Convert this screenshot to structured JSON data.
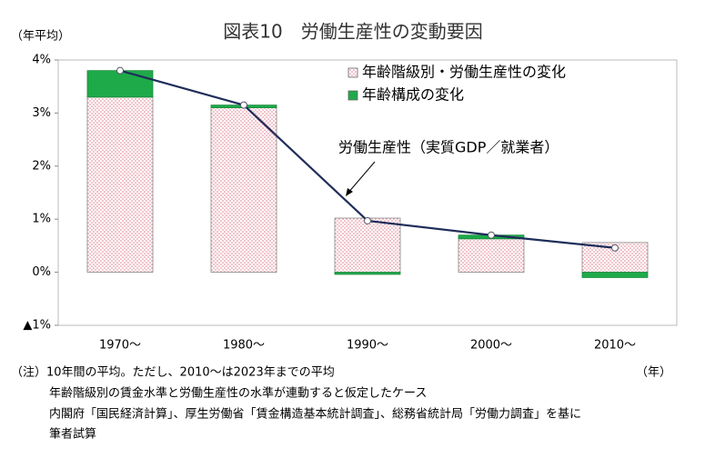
{
  "chart_data": {
    "type": "bar",
    "title": "図表10　労働生産性の変動要因",
    "y_unit_label": "（年平均）",
    "x_unit_label": "（年）",
    "categories": [
      "1970～",
      "1980～",
      "1990～",
      "2000～",
      "2010～"
    ],
    "series": [
      {
        "name": "年齢階級別・労働生産性の変化",
        "type": "bar",
        "color": "#e8a0a8",
        "values": [
          3.3,
          3.1,
          1.02,
          0.63,
          0.56
        ]
      },
      {
        "name": "年齢構成の変化",
        "type": "bar",
        "color": "#1faa4a",
        "values": [
          0.5,
          0.05,
          -0.04,
          0.07,
          -0.1
        ]
      },
      {
        "name": "労働生産性（実質GDP／就業者）",
        "type": "line",
        "color": "#1f2d5a",
        "values": [
          3.8,
          3.15,
          0.97,
          0.7,
          0.46
        ]
      }
    ],
    "ylim": [
      -1,
      4
    ],
    "yticks": [
      {
        "value": 4,
        "label": "4%"
      },
      {
        "value": 3,
        "label": "3%"
      },
      {
        "value": 2,
        "label": "2%"
      },
      {
        "value": 1,
        "label": "1%"
      },
      {
        "value": 0,
        "label": "0%"
      },
      {
        "value": -1,
        "label": "▲1%"
      }
    ],
    "stacked": true,
    "notes": [
      "（注）10年間の平均。ただし、2010～は2023年までの平均",
      "年齢階級別の賃金水準と労働生産性の水準が連動すると仮定したケース",
      "内閣府「国民経済計算」、厚生労働省「賃金構造基本統計調査」、総務省統計局「労働力調査」を基に",
      "筆者試算"
    ]
  }
}
